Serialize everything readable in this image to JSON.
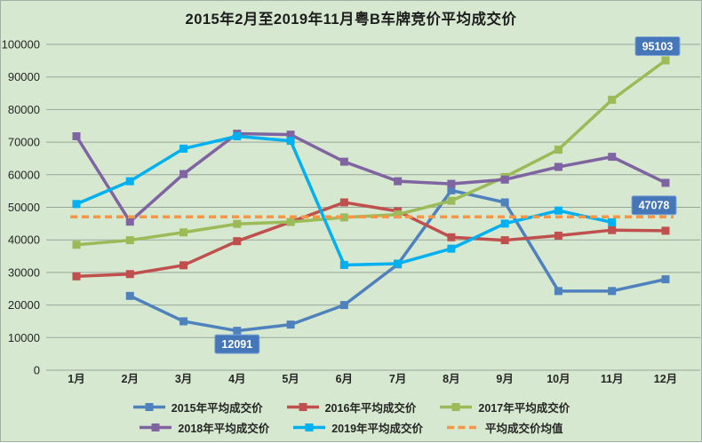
{
  "title": "2015年2月至2019年11月粤B车牌竞价平均成交价",
  "colors": {
    "background": "#d6e8cf",
    "gridline": "#9aa69b",
    "axis_text": "#262626",
    "badge_fill": "#4576b8",
    "badge_border": "#7ea6d8",
    "badge_text": "#ffffff"
  },
  "chart_data": {
    "type": "line",
    "title": "2015年2月至2019年11月粤B车牌竞价平均成交价",
    "categories": [
      "1月",
      "2月",
      "3月",
      "4月",
      "5月",
      "6月",
      "7月",
      "8月",
      "9月",
      "10月",
      "11月",
      "12月"
    ],
    "y_ticks": [
      0,
      10000,
      20000,
      30000,
      40000,
      50000,
      60000,
      70000,
      80000,
      90000,
      100000
    ],
    "ylim": [
      0,
      100000
    ],
    "grid": true,
    "legend_position": "bottom",
    "series": [
      {
        "name": "2015年平均成交价",
        "color": "#4f81bd",
        "values": [
          null,
          22800,
          15000,
          12091,
          14000,
          20000,
          32500,
          55200,
          51500,
          24300,
          24300,
          27900
        ]
      },
      {
        "name": "2016年平均成交价",
        "color": "#c0504d",
        "values": [
          28800,
          29500,
          32200,
          39600,
          45500,
          51500,
          48800,
          40800,
          39900,
          41300,
          43000,
          42800
        ]
      },
      {
        "name": "2017年平均成交价",
        "color": "#9bbb59",
        "values": [
          38500,
          39900,
          42300,
          44900,
          45500,
          46900,
          47800,
          52000,
          59300,
          67700,
          83000,
          95103
        ]
      },
      {
        "name": "2018年平均成交价",
        "color": "#8064a2",
        "values": [
          71800,
          45600,
          60200,
          72600,
          72300,
          64000,
          58000,
          57200,
          58500,
          62400,
          65500,
          57500
        ]
      },
      {
        "name": "2019年平均成交价",
        "color": "#00b0f0",
        "values": [
          51000,
          58000,
          68000,
          71800,
          70400,
          32300,
          32700,
          37300,
          45000,
          49000,
          45400,
          null
        ]
      }
    ],
    "mean_line": {
      "name": "平均成交价均值",
      "value": 47078,
      "color": "#f79646",
      "style": "dashed"
    },
    "annotations": [
      {
        "text": "12091",
        "series": "2015年平均成交价",
        "month": "4月",
        "placement": "below"
      },
      {
        "text": "95103",
        "series": "2017年平均成交价",
        "month": "12月",
        "placement": "above-left"
      },
      {
        "text": "47078",
        "series": "平均成交价均值",
        "placement": "right-end"
      }
    ]
  }
}
